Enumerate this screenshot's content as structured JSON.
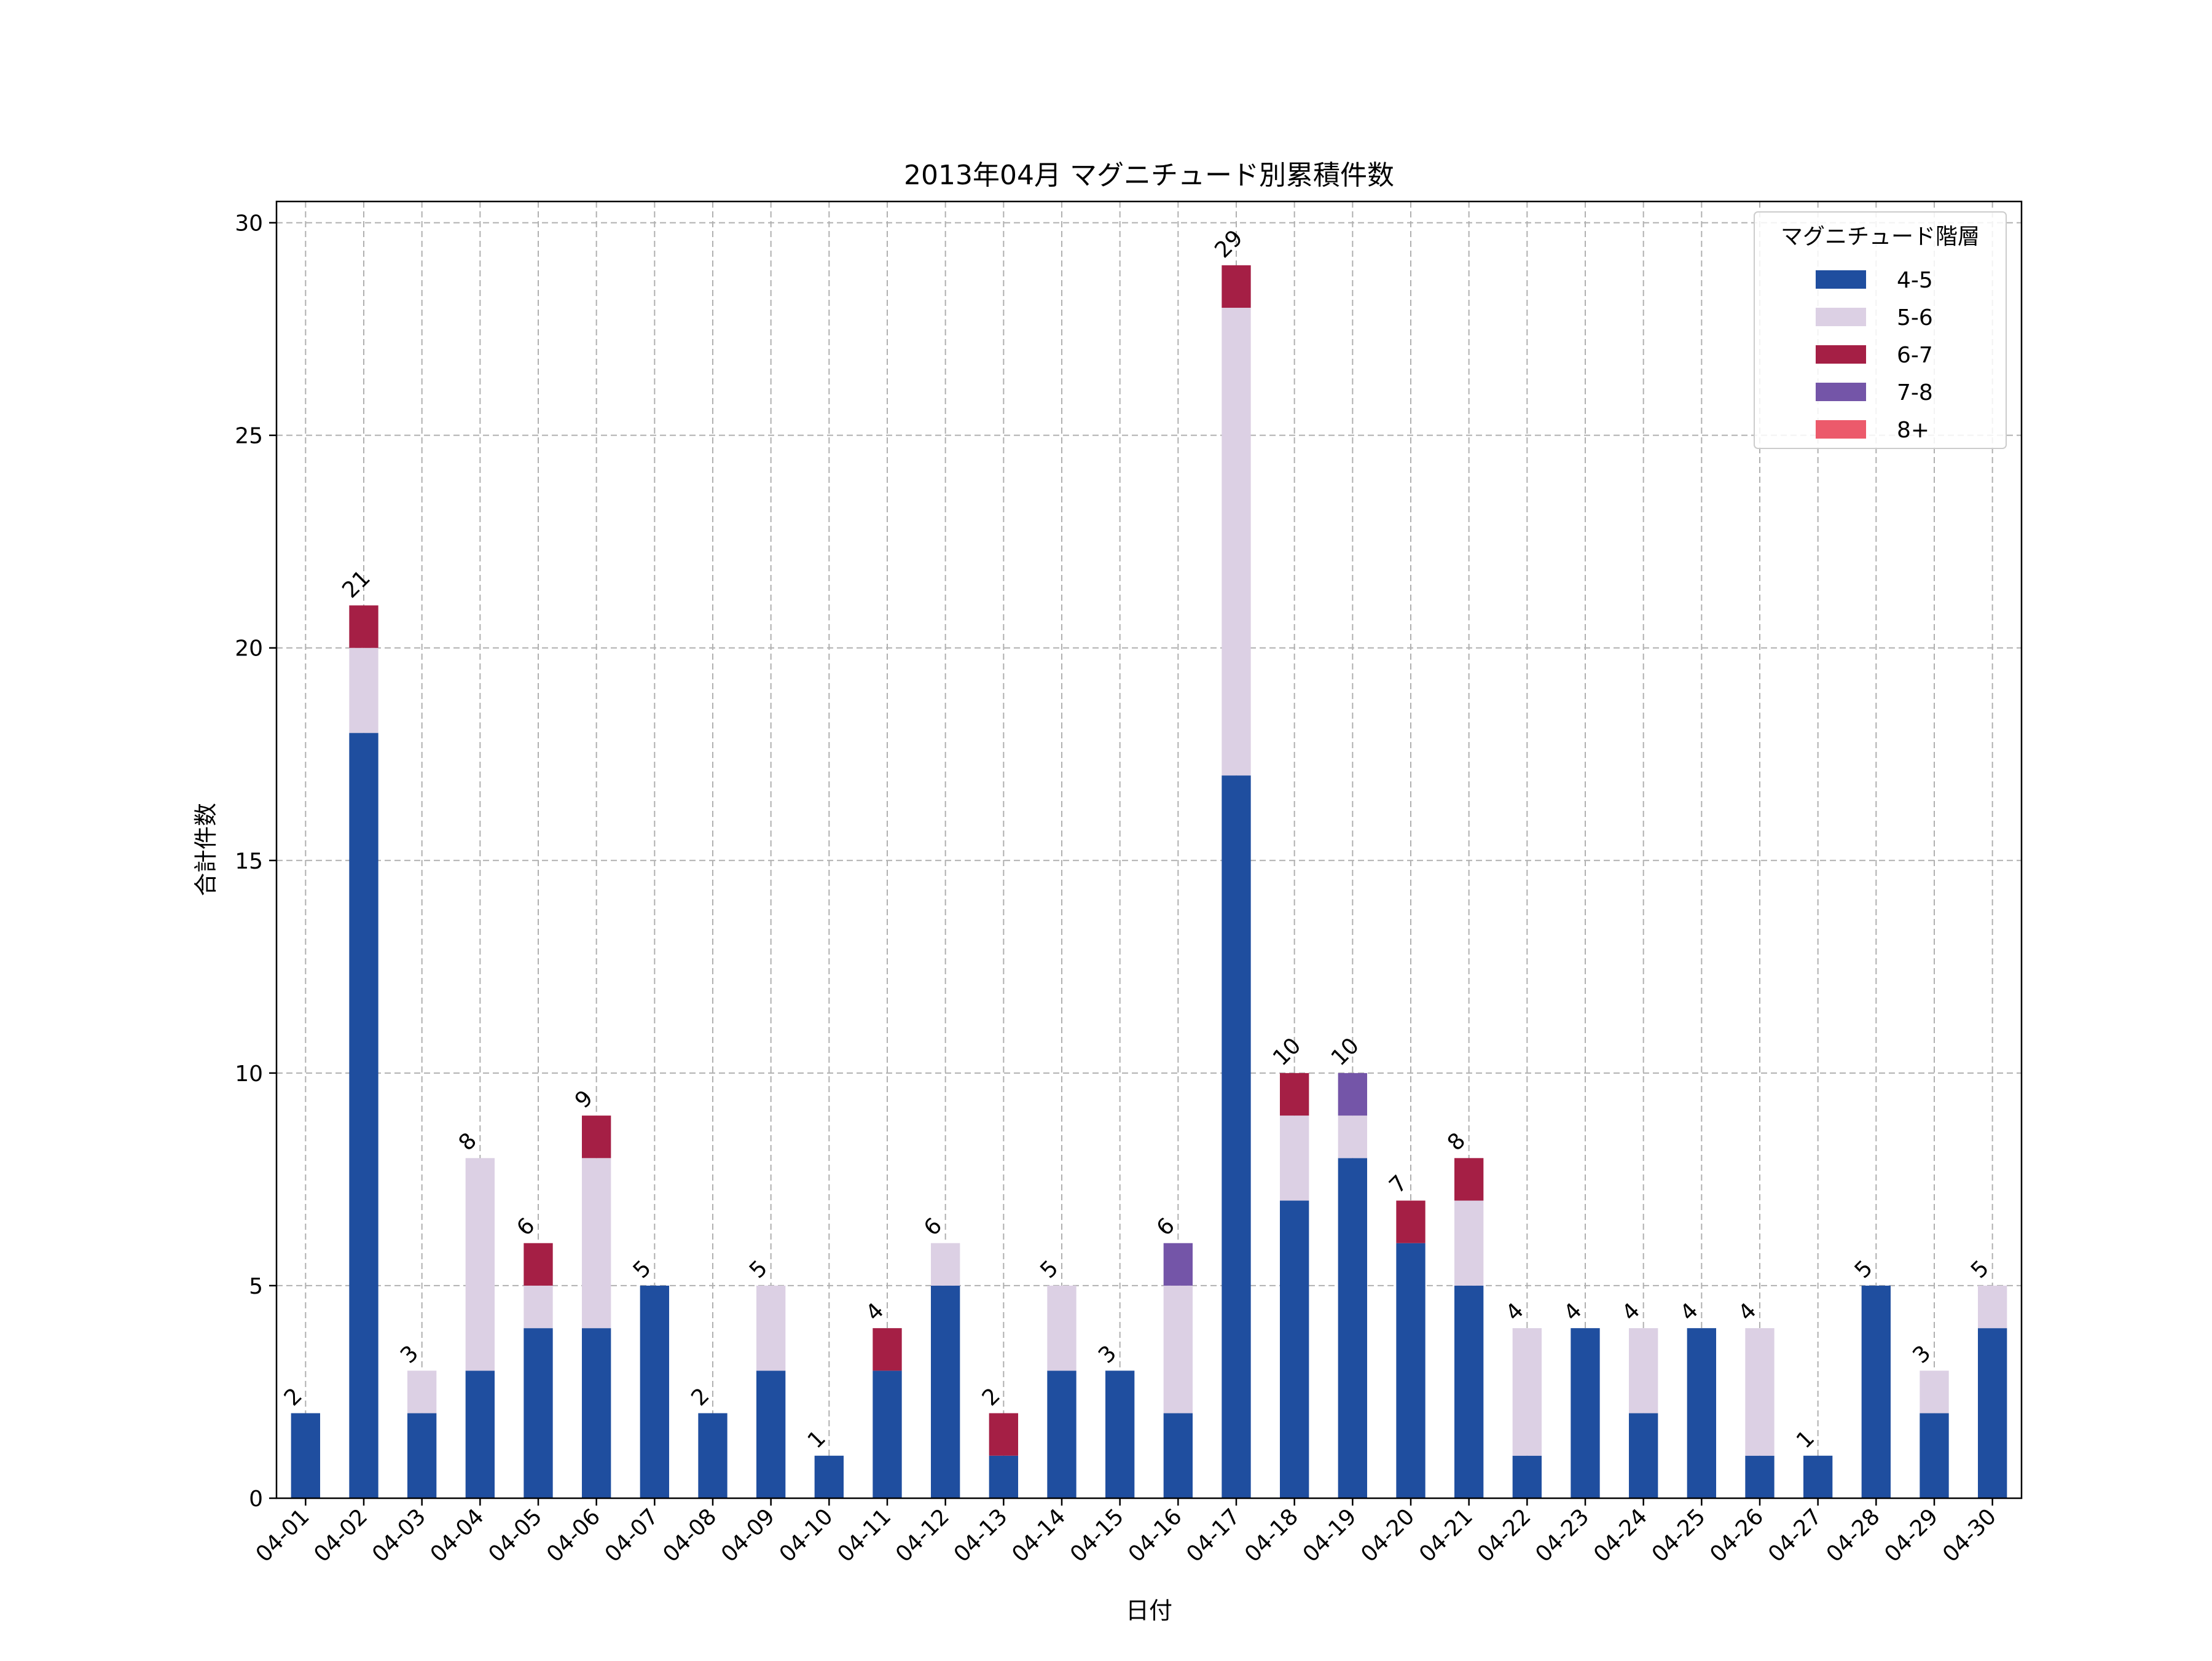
{
  "chart_data": {
    "type": "bar",
    "stacked": true,
    "title": "2013年04月 マグニチュード別累積件数",
    "xlabel": "日付",
    "ylabel": "合計件数",
    "ylim": [
      0,
      30.5
    ],
    "yticks": [
      0,
      5,
      10,
      15,
      20,
      25,
      30
    ],
    "grid": true,
    "legend_title": "マグニチュード階層",
    "legend_position": "top-right",
    "categories": [
      "04-01",
      "04-02",
      "04-03",
      "04-04",
      "04-05",
      "04-06",
      "04-07",
      "04-08",
      "04-09",
      "04-10",
      "04-11",
      "04-12",
      "04-13",
      "04-14",
      "04-15",
      "04-16",
      "04-17",
      "04-18",
      "04-19",
      "04-20",
      "04-21",
      "04-22",
      "04-23",
      "04-24",
      "04-25",
      "04-26",
      "04-27",
      "04-28",
      "04-29",
      "04-30"
    ],
    "series": [
      {
        "name": "4-5",
        "color": "#1f4e9f",
        "values": [
          2,
          18,
          2,
          3,
          4,
          4,
          5,
          2,
          3,
          1,
          3,
          5,
          1,
          3,
          3,
          2,
          17,
          7,
          8,
          6,
          5,
          1,
          4,
          2,
          4,
          1,
          1,
          5,
          2,
          4
        ]
      },
      {
        "name": "5-6",
        "color": "#dcd0e4",
        "values": [
          0,
          2,
          1,
          5,
          1,
          4,
          0,
          0,
          2,
          0,
          0,
          1,
          0,
          2,
          0,
          3,
          11,
          2,
          1,
          0,
          2,
          3,
          0,
          2,
          0,
          3,
          0,
          0,
          1,
          1
        ]
      },
      {
        "name": "6-7",
        "color": "#a51f45",
        "values": [
          0,
          1,
          0,
          0,
          1,
          1,
          0,
          0,
          0,
          0,
          1,
          0,
          1,
          0,
          0,
          0,
          1,
          1,
          0,
          1,
          1,
          0,
          0,
          0,
          0,
          0,
          0,
          0,
          0,
          0
        ]
      },
      {
        "name": "7-8",
        "color": "#7455a8",
        "values": [
          0,
          0,
          0,
          0,
          0,
          0,
          0,
          0,
          0,
          0,
          0,
          0,
          0,
          0,
          0,
          1,
          0,
          0,
          1,
          0,
          0,
          0,
          0,
          0,
          0,
          0,
          0,
          0,
          0,
          0
        ]
      },
      {
        "name": "8+",
        "color": "#ec5a6b",
        "values": [
          0,
          0,
          0,
          0,
          0,
          0,
          0,
          0,
          0,
          0,
          0,
          0,
          0,
          0,
          0,
          0,
          0,
          0,
          0,
          0,
          0,
          0,
          0,
          0,
          0,
          0,
          0,
          0,
          0,
          0
        ]
      }
    ],
    "totals": [
      2,
      21,
      3,
      8,
      6,
      9,
      5,
      2,
      5,
      1,
      4,
      6,
      2,
      5,
      3,
      6,
      29,
      10,
      10,
      7,
      8,
      4,
      4,
      4,
      4,
      4,
      1,
      5,
      3,
      5
    ]
  }
}
